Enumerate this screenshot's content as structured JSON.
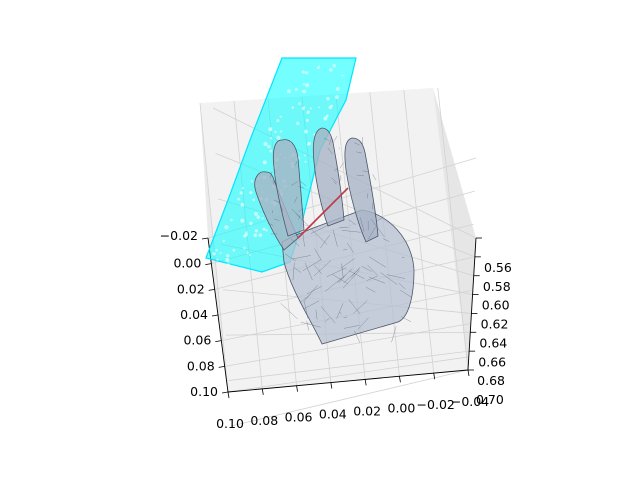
{
  "chart_data": {
    "type": "3d-mesh",
    "title": "",
    "xlabel": "",
    "ylabel": "",
    "zlabel": "",
    "x_ticks": [
      "0.10",
      "0.08",
      "0.06",
      "0.04",
      "0.02",
      "0.00",
      "−0.02",
      "−0.04"
    ],
    "y_ticks": [
      "−0.02",
      "0.00",
      "0.02",
      "0.04",
      "0.06",
      "0.08",
      "0.10"
    ],
    "z_ticks": [
      "0.56",
      "0.58",
      "0.60",
      "0.62",
      "0.64",
      "0.66",
      "0.68",
      "0.70"
    ],
    "xlim": [
      0.1,
      -0.04
    ],
    "ylim": [
      -0.02,
      0.1
    ],
    "zlim": [
      0.56,
      0.7
    ],
    "grid": true,
    "objects": [
      {
        "kind": "hand-mesh",
        "color": "#aab7c8",
        "edge_color": "#4c5668"
      },
      {
        "kind": "point-cloud",
        "color": "#00ffff"
      },
      {
        "kind": "line-segment",
        "color": "#c0394a"
      }
    ]
  }
}
